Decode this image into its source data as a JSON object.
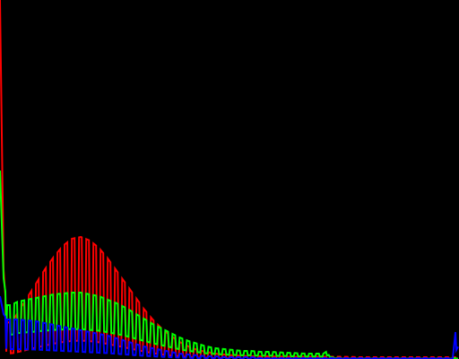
{
  "chart_data": {
    "type": "line",
    "title": "",
    "xlabel": "",
    "ylabel": "",
    "xlim": [
      0,
      255
    ],
    "ylim": [
      0,
      400
    ],
    "grid": false,
    "legend": "none",
    "background": "#000000",
    "x": [
      0,
      2,
      4,
      6,
      8,
      10,
      15,
      20,
      25,
      30,
      35,
      40,
      45,
      50,
      55,
      60,
      65,
      70,
      75,
      80,
      85,
      90,
      95,
      100,
      105,
      110,
      115,
      120,
      125,
      130,
      135,
      140,
      145,
      150,
      160,
      170,
      180,
      183,
      184,
      190,
      200,
      210,
      220,
      230,
      240,
      250,
      252,
      253,
      254,
      255
    ],
    "series": [
      {
        "color": "#ff0000",
        "oscillation": 0.85,
        "values": [
          400,
          100,
          40,
          42,
          45,
          52,
          68,
          84,
          100,
          114,
          126,
          134,
          136,
          132,
          124,
          112,
          98,
          84,
          70,
          56,
          44,
          34,
          26,
          19,
          14,
          10,
          8,
          6,
          5,
          4,
          3.5,
          3,
          3,
          3,
          2.5,
          2.5,
          2.5,
          2.5,
          2.5,
          2.5,
          2,
          2,
          2,
          2,
          2,
          2,
          2,
          2,
          2,
          2
        ]
      },
      {
        "color": "#00ff00",
        "oscillation": 0.55,
        "values": [
          210,
          90,
          60,
          60,
          62,
          64,
          66,
          68,
          70,
          72,
          73,
          74,
          74,
          72,
          70,
          66,
          62,
          57,
          51,
          45,
          39,
          34,
          29,
          24,
          20,
          17,
          14,
          12,
          11,
          10,
          9,
          9,
          8,
          8,
          7,
          6,
          6,
          10,
          2,
          1,
          1,
          1,
          1,
          1,
          1,
          1,
          1,
          1,
          1,
          1
        ]
      },
      {
        "color": "#0000ff",
        "oscillation": 0.75,
        "values": [
          70,
          50,
          44,
          44,
          44,
          44,
          43,
          42,
          40,
          38,
          36,
          34,
          32,
          30,
          28,
          26,
          23,
          20,
          17,
          14,
          12,
          10,
          8,
          6,
          5,
          4,
          3,
          3,
          2,
          2,
          2,
          2,
          1,
          1,
          1,
          1,
          1,
          1,
          1,
          1,
          1,
          1,
          1,
          1,
          1,
          1,
          1,
          20,
          40,
          55
        ]
      }
    ]
  }
}
